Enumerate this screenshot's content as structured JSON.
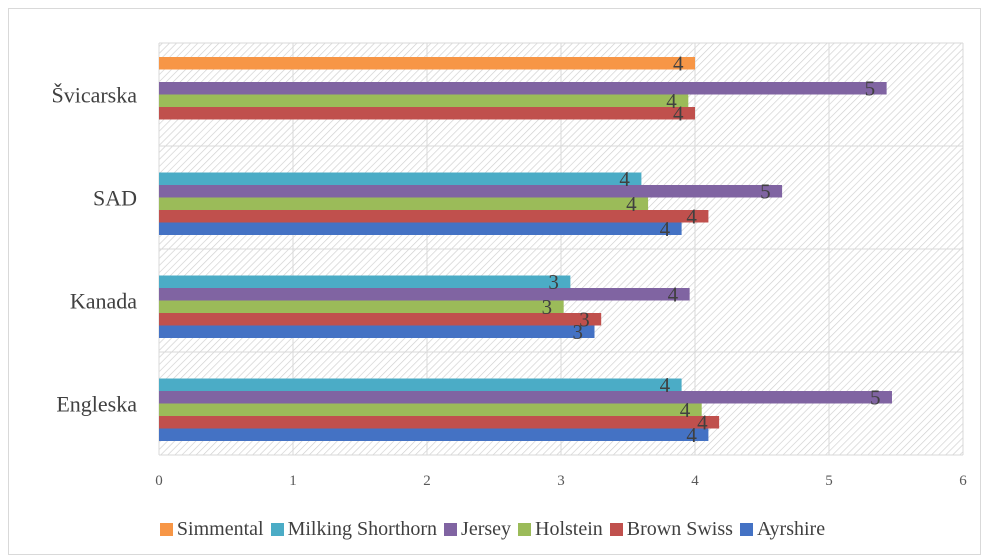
{
  "chart_data": {
    "type": "bar",
    "orientation": "horizontal",
    "categories": [
      "Engleska",
      "Kanada",
      "SAD",
      "Švicarska"
    ],
    "x_ticks": [
      "0",
      "1",
      "2",
      "3",
      "4",
      "5",
      "6"
    ],
    "xlim": [
      0,
      6
    ],
    "grid": true,
    "legend_position": "bottom",
    "series": [
      {
        "name": "Ayrshire",
        "color": "#4472c4",
        "values": [
          4.1,
          3.25,
          3.9,
          null
        ],
        "labels": [
          "4",
          "3",
          "4",
          ""
        ]
      },
      {
        "name": "Brown Swiss",
        "color": "#c0504d",
        "values": [
          4.18,
          3.3,
          4.1,
          4.0
        ],
        "labels": [
          "4",
          "3",
          "4",
          "4"
        ]
      },
      {
        "name": "Holstein",
        "color": "#9bbb59",
        "values": [
          4.05,
          3.02,
          3.65,
          3.95
        ],
        "labels": [
          "4",
          "3",
          "4",
          "4"
        ]
      },
      {
        "name": "Jersey",
        "color": "#8064a2",
        "values": [
          5.47,
          3.96,
          4.65,
          5.43
        ],
        "labels": [
          "5",
          "4",
          "5",
          "5"
        ]
      },
      {
        "name": "Milking Shorthorn",
        "color": "#4bacc6",
        "values": [
          3.9,
          3.07,
          3.6,
          null
        ],
        "labels": [
          "4",
          "3",
          "4",
          ""
        ]
      },
      {
        "name": "Simmental",
        "color": "#f79646",
        "values": [
          null,
          null,
          null,
          4.0
        ],
        "labels": [
          "",
          "",
          "",
          "4"
        ]
      }
    ],
    "legend_order": [
      "Simmental",
      "Milking Shorthorn",
      "Jersey",
      "Holstein",
      "Brown Swiss",
      "Ayrshire"
    ]
  }
}
